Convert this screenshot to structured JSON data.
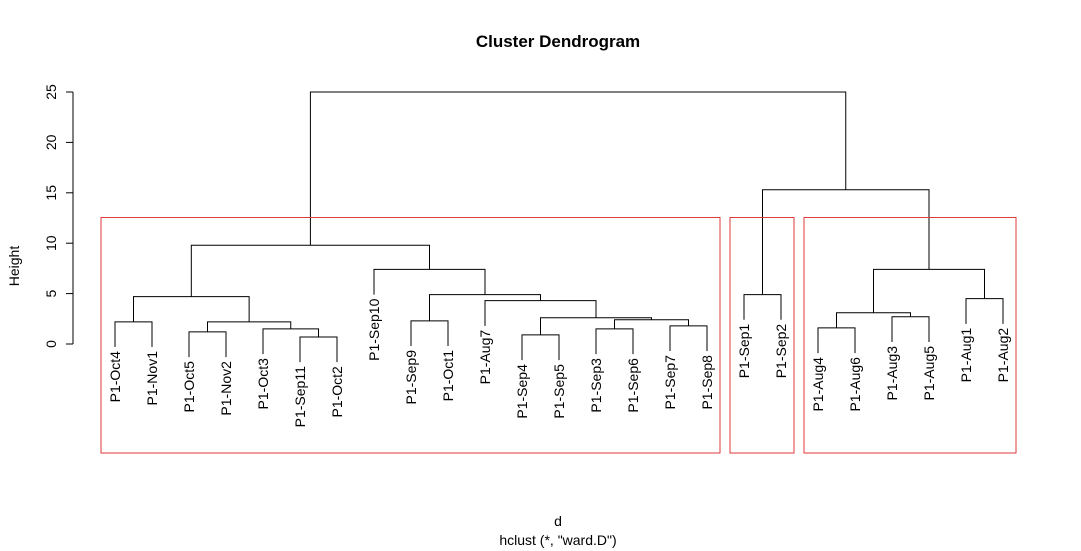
{
  "chart_data": {
    "type": "dendrogram",
    "title": "Cluster Dendrogram",
    "y_label": "Height",
    "x_label": "d",
    "subtitle": "hclust (*, \"ward.D\")",
    "ylim": [
      0,
      25
    ],
    "yticks": [
      0,
      5,
      10,
      15,
      20,
      25
    ],
    "k": 3,
    "rect_color": "#e03a3a",
    "color": "#000000",
    "tree": {
      "height": 25.0,
      "children": [
        {
          "height": 9.8,
          "children": [
            {
              "height": 4.7,
              "children": [
                {
                  "height": 2.2,
                  "children": [
                    {
                      "label": "P1-Oct4"
                    },
                    {
                      "label": "P1-Nov1"
                    }
                  ]
                },
                {
                  "height": 2.2,
                  "children": [
                    {
                      "height": 1.2,
                      "children": [
                        {
                          "label": "P1-Oct5"
                        },
                        {
                          "label": "P1-Nov2"
                        }
                      ]
                    },
                    {
                      "height": 1.5,
                      "children": [
                        {
                          "label": "P1-Oct3"
                        },
                        {
                          "height": 0.7,
                          "children": [
                            {
                              "label": "P1-Sep11"
                            },
                            {
                              "label": "P1-Oct2"
                            }
                          ]
                        }
                      ]
                    }
                  ]
                }
              ]
            },
            {
              "height": 7.4,
              "children": [
                {
                  "label": "P1-Sep10"
                },
                {
                  "height": 4.9,
                  "children": [
                    {
                      "height": 2.3,
                      "children": [
                        {
                          "label": "P1-Sep9"
                        },
                        {
                          "label": "P1-Oct1"
                        }
                      ]
                    },
                    {
                      "height": 4.3,
                      "children": [
                        {
                          "label": "P1-Aug7"
                        },
                        {
                          "height": 2.6,
                          "children": [
                            {
                              "height": 0.9,
                              "children": [
                                {
                                  "label": "P1-Sep4"
                                },
                                {
                                  "label": "P1-Sep5"
                                }
                              ]
                            },
                            {
                              "height": 2.4,
                              "children": [
                                {
                                  "height": 1.5,
                                  "children": [
                                    {
                                      "label": "P1-Sep3"
                                    },
                                    {
                                      "label": "P1-Sep6"
                                    }
                                  ]
                                },
                                {
                                  "height": 1.8,
                                  "children": [
                                    {
                                      "label": "P1-Sep7"
                                    },
                                    {
                                      "label": "P1-Sep8"
                                    }
                                  ]
                                }
                              ]
                            }
                          ]
                        }
                      ]
                    }
                  ]
                }
              ]
            }
          ]
        },
        {
          "height": 15.3,
          "children": [
            {
              "height": 4.9,
              "children": [
                {
                  "label": "P1-Sep1"
                },
                {
                  "label": "P1-Sep2"
                }
              ]
            },
            {
              "height": 7.4,
              "children": [
                {
                  "height": 3.1,
                  "children": [
                    {
                      "height": 1.6,
                      "children": [
                        {
                          "label": "P1-Aug4"
                        },
                        {
                          "label": "P1-Aug6"
                        }
                      ]
                    },
                    {
                      "height": 2.7,
                      "children": [
                        {
                          "label": "P1-Aug3"
                        },
                        {
                          "label": "P1-Aug5"
                        }
                      ]
                    }
                  ]
                },
                {
                  "height": 4.5,
                  "children": [
                    {
                      "label": "P1-Aug1"
                    },
                    {
                      "label": "P1-Aug2"
                    }
                  ]
                }
              ]
            }
          ]
        }
      ]
    }
  }
}
